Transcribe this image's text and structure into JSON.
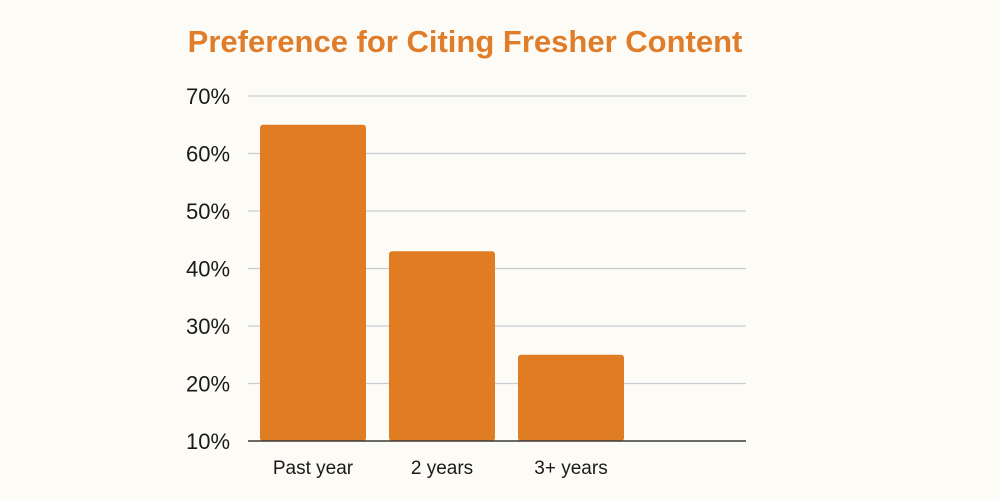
{
  "chart_data": {
    "type": "bar",
    "title": "Preference for Citing Fresher Content",
    "categories": [
      "Past year",
      "2 years",
      "3+ years"
    ],
    "values": [
      65,
      43,
      25
    ],
    "ylim": [
      10,
      70
    ],
    "yticks": [
      "70%",
      "60%",
      "50%",
      "40%",
      "30%",
      "20%",
      "10%"
    ],
    "ytick_values": [
      70,
      60,
      50,
      40,
      30,
      20,
      10
    ],
    "grid": true,
    "bar_color": "#e07d22",
    "title_color": "#e07d2a"
  }
}
